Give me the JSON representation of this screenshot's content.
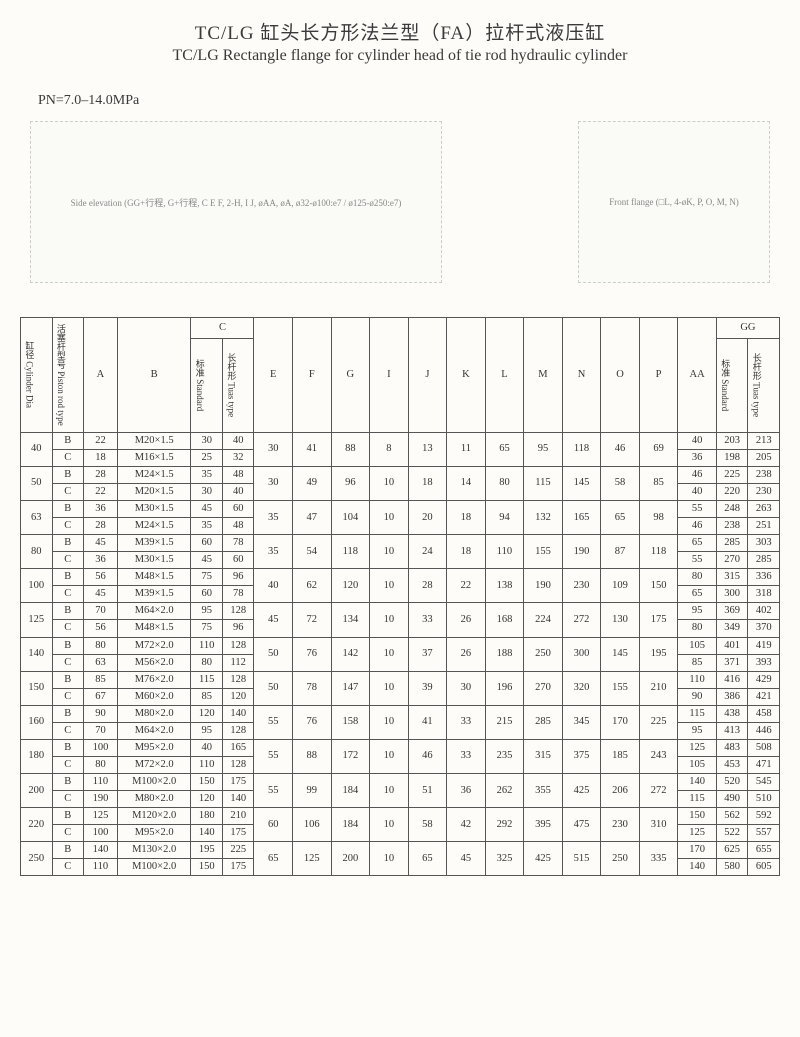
{
  "title_cn": "TC/LG 缸头长方形法兰型（FA）拉杆式液压缸",
  "title_en": "TC/LG Rectangle flange for cylinder head of tie rod hydraulic cylinder",
  "pn": "PN=7.0–14.0MPa",
  "diagram": {
    "side_label": "Side elevation (GG+行程, G+行程, C E F, 2-H, I J, øAA, øA, ø32-ø100:e7 / ø125-ø250:e7)",
    "front_label": "Front flange (□L, 4-øK, P, O, M, N)"
  },
  "headers": {
    "cylDia": "缸径 Cylinder Dia",
    "rodType": "活塞杆型号 Piston rod type",
    "A": "A",
    "B": "B",
    "C": "C",
    "C_std": "标准 Standard",
    "C_tuas": "长杆形 Tuas type",
    "E": "E",
    "F": "F",
    "G": "G",
    "I": "I",
    "J": "J",
    "K": "K",
    "L": "L",
    "M": "M",
    "N": "N",
    "O": "O",
    "P": "P",
    "AA": "AA",
    "GG": "GG",
    "GG_std": "标准 Standard",
    "GG_tuas": "长杆形 Tuas type"
  },
  "rows": [
    {
      "dia": "40",
      "sub": [
        {
          "t": "B",
          "A": "22",
          "B": "M20×1.5",
          "Cs": "30",
          "Ct": "40",
          "E": "30",
          "F": "41",
          "G": "88",
          "I": "8",
          "J": "13",
          "K": "11",
          "L": "65",
          "M": "95",
          "N": "118",
          "O": "46",
          "P": "69",
          "AA": "40",
          "Gs": "203",
          "Gt": "213"
        },
        {
          "t": "C",
          "A": "18",
          "B": "M16×1.5",
          "Cs": "25",
          "Ct": "32",
          "AA": "36",
          "Gs": "198",
          "Gt": "205"
        }
      ]
    },
    {
      "dia": "50",
      "sub": [
        {
          "t": "B",
          "A": "28",
          "B": "M24×1.5",
          "Cs": "35",
          "Ct": "48",
          "E": "30",
          "F": "49",
          "G": "96",
          "I": "10",
          "J": "18",
          "K": "14",
          "L": "80",
          "M": "115",
          "N": "145",
          "O": "58",
          "P": "85",
          "AA": "46",
          "Gs": "225",
          "Gt": "238"
        },
        {
          "t": "C",
          "A": "22",
          "B": "M20×1.5",
          "Cs": "30",
          "Ct": "40",
          "AA": "40",
          "Gs": "220",
          "Gt": "230"
        }
      ]
    },
    {
      "dia": "63",
      "sub": [
        {
          "t": "B",
          "A": "36",
          "B": "M30×1.5",
          "Cs": "45",
          "Ct": "60",
          "E": "35",
          "F": "47",
          "G": "104",
          "I": "10",
          "J": "20",
          "K": "18",
          "L": "94",
          "M": "132",
          "N": "165",
          "O": "65",
          "P": "98",
          "AA": "55",
          "Gs": "248",
          "Gt": "263"
        },
        {
          "t": "C",
          "A": "28",
          "B": "M24×1.5",
          "Cs": "35",
          "Ct": "48",
          "AA": "46",
          "Gs": "238",
          "Gt": "251"
        }
      ]
    },
    {
      "dia": "80",
      "sub": [
        {
          "t": "B",
          "A": "45",
          "B": "M39×1.5",
          "Cs": "60",
          "Ct": "78",
          "E": "35",
          "F": "54",
          "G": "118",
          "I": "10",
          "J": "24",
          "K": "18",
          "L": "110",
          "M": "155",
          "N": "190",
          "O": "87",
          "P": "118",
          "AA": "65",
          "Gs": "285",
          "Gt": "303"
        },
        {
          "t": "C",
          "A": "36",
          "B": "M30×1.5",
          "Cs": "45",
          "Ct": "60",
          "AA": "55",
          "Gs": "270",
          "Gt": "285"
        }
      ]
    },
    {
      "dia": "100",
      "sub": [
        {
          "t": "B",
          "A": "56",
          "B": "M48×1.5",
          "Cs": "75",
          "Ct": "96",
          "E": "40",
          "F": "62",
          "G": "120",
          "I": "10",
          "J": "28",
          "K": "22",
          "L": "138",
          "M": "190",
          "N": "230",
          "O": "109",
          "P": "150",
          "AA": "80",
          "Gs": "315",
          "Gt": "336"
        },
        {
          "t": "C",
          "A": "45",
          "B": "M39×1.5",
          "Cs": "60",
          "Ct": "78",
          "AA": "65",
          "Gs": "300",
          "Gt": "318"
        }
      ]
    },
    {
      "dia": "125",
      "sub": [
        {
          "t": "B",
          "A": "70",
          "B": "M64×2.0",
          "Cs": "95",
          "Ct": "128",
          "E": "45",
          "F": "72",
          "G": "134",
          "I": "10",
          "J": "33",
          "K": "26",
          "L": "168",
          "M": "224",
          "N": "272",
          "O": "130",
          "P": "175",
          "AA": "95",
          "Gs": "369",
          "Gt": "402"
        },
        {
          "t": "C",
          "A": "56",
          "B": "M48×1.5",
          "Cs": "75",
          "Ct": "96",
          "AA": "80",
          "Gs": "349",
          "Gt": "370"
        }
      ]
    },
    {
      "dia": "140",
      "sub": [
        {
          "t": "B",
          "A": "80",
          "B": "M72×2.0",
          "Cs": "110",
          "Ct": "128",
          "E": "50",
          "F": "76",
          "G": "142",
          "I": "10",
          "J": "37",
          "K": "26",
          "L": "188",
          "M": "250",
          "N": "300",
          "O": "145",
          "P": "195",
          "AA": "105",
          "Gs": "401",
          "Gt": "419"
        },
        {
          "t": "C",
          "A": "63",
          "B": "M56×2.0",
          "Cs": "80",
          "Ct": "112",
          "AA": "85",
          "Gs": "371",
          "Gt": "393"
        }
      ]
    },
    {
      "dia": "150",
      "sub": [
        {
          "t": "B",
          "A": "85",
          "B": "M76×2.0",
          "Cs": "115",
          "Ct": "128",
          "E": "50",
          "F": "78",
          "G": "147",
          "I": "10",
          "J": "39",
          "K": "30",
          "L": "196",
          "M": "270",
          "N": "320",
          "O": "155",
          "P": "210",
          "AA": "110",
          "Gs": "416",
          "Gt": "429"
        },
        {
          "t": "C",
          "A": "67",
          "B": "M60×2.0",
          "Cs": "85",
          "Ct": "120",
          "AA": "90",
          "Gs": "386",
          "Gt": "421"
        }
      ]
    },
    {
      "dia": "160",
      "sub": [
        {
          "t": "B",
          "A": "90",
          "B": "M80×2.0",
          "Cs": "120",
          "Ct": "140",
          "E": "55",
          "F": "76",
          "G": "158",
          "I": "10",
          "J": "41",
          "K": "33",
          "L": "215",
          "M": "285",
          "N": "345",
          "O": "170",
          "P": "225",
          "AA": "115",
          "Gs": "438",
          "Gt": "458"
        },
        {
          "t": "C",
          "A": "70",
          "B": "M64×2.0",
          "Cs": "95",
          "Ct": "128",
          "AA": "95",
          "Gs": "413",
          "Gt": "446"
        }
      ]
    },
    {
      "dia": "180",
      "sub": [
        {
          "t": "B",
          "A": "100",
          "B": "M95×2.0",
          "Cs": "40",
          "Ct": "165",
          "E": "55",
          "F": "88",
          "G": "172",
          "I": "10",
          "J": "46",
          "K": "33",
          "L": "235",
          "M": "315",
          "N": "375",
          "O": "185",
          "P": "243",
          "AA": "125",
          "Gs": "483",
          "Gt": "508"
        },
        {
          "t": "C",
          "A": "80",
          "B": "M72×2.0",
          "Cs": "110",
          "Ct": "128",
          "AA": "105",
          "Gs": "453",
          "Gt": "471"
        }
      ]
    },
    {
      "dia": "200",
      "sub": [
        {
          "t": "B",
          "A": "110",
          "B": "M100×2.0",
          "Cs": "150",
          "Ct": "175",
          "E": "55",
          "F": "99",
          "G": "184",
          "I": "10",
          "J": "51",
          "K": "36",
          "L": "262",
          "M": "355",
          "N": "425",
          "O": "206",
          "P": "272",
          "AA": "140",
          "Gs": "520",
          "Gt": "545"
        },
        {
          "t": "C",
          "A": "190",
          "B": "M80×2.0",
          "Cs": "120",
          "Ct": "140",
          "AA": "115",
          "Gs": "490",
          "Gt": "510"
        }
      ]
    },
    {
      "dia": "220",
      "sub": [
        {
          "t": "B",
          "A": "125",
          "B": "M120×2.0",
          "Cs": "180",
          "Ct": "210",
          "E": "60",
          "F": "106",
          "G": "184",
          "I": "10",
          "J": "58",
          "K": "42",
          "L": "292",
          "M": "395",
          "N": "475",
          "O": "230",
          "P": "310",
          "AA": "150",
          "Gs": "562",
          "Gt": "592"
        },
        {
          "t": "C",
          "A": "100",
          "B": "M95×2.0",
          "Cs": "140",
          "Ct": "175",
          "AA": "125",
          "Gs": "522",
          "Gt": "557"
        }
      ]
    },
    {
      "dia": "250",
      "sub": [
        {
          "t": "B",
          "A": "140",
          "B": "M130×2.0",
          "Cs": "195",
          "Ct": "225",
          "E": "65",
          "F": "125",
          "G": "200",
          "I": "10",
          "J": "65",
          "K": "45",
          "L": "325",
          "M": "425",
          "N": "515",
          "O": "250",
          "P": "335",
          "AA": "170",
          "Gs": "625",
          "Gt": "655"
        },
        {
          "t": "C",
          "A": "110",
          "B": "M100×2.0",
          "Cs": "150",
          "Ct": "175",
          "AA": "140",
          "Gs": "580",
          "Gt": "605"
        }
      ]
    }
  ]
}
